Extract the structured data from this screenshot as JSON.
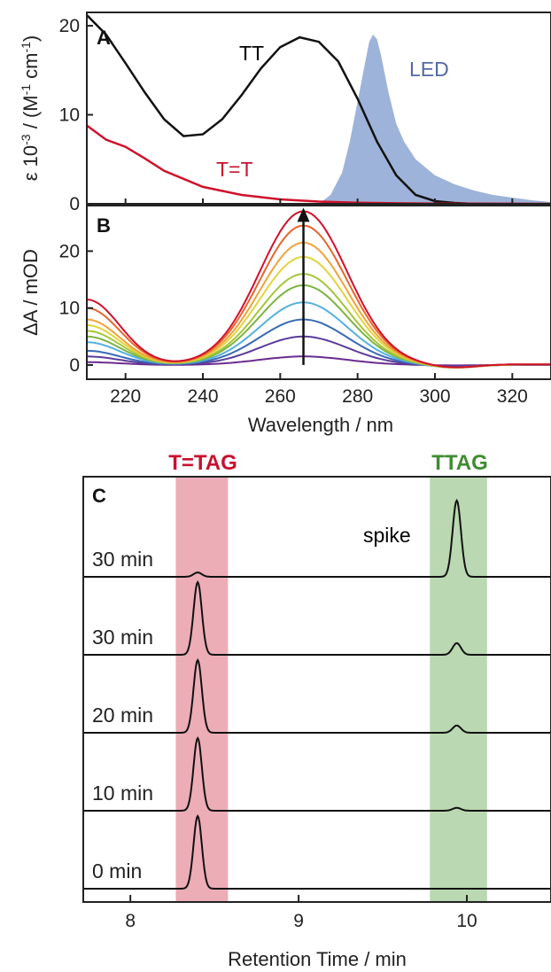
{
  "colors": {
    "tt": "#111111",
    "tt_dimer": "#d0112b",
    "led_fill": "#9db3d9",
    "led_label": "#5468a8",
    "t_tag_band": "#e48a97",
    "ttag_band": "#9cc890",
    "t_tag_label": "#c8102e",
    "ttag_label": "#3e8d2f",
    "spectra_series": [
      "#6a2c8e",
      "#5a3c9a",
      "#3a6ab5",
      "#54b0e0",
      "#7cb342",
      "#a4c639",
      "#e2d43a",
      "#f2a23a",
      "#e8652a",
      "#d0112b"
    ]
  },
  "chart_data": [
    {
      "panel": "A",
      "type": "line",
      "ylabel": "ε 10-3 / (M-1 cm-1)",
      "ylabel_parts": {
        "main": "ε 10",
        "exp1": "-3",
        "mid": " / (M",
        "exp2": "-1",
        "mid2": " cm",
        "exp3": "-1",
        "end": ")"
      },
      "xlim": [
        210,
        330
      ],
      "ylim": [
        0,
        21.5
      ],
      "y_ticks": [
        "0",
        "10",
        "20"
      ],
      "y_tick_values": [
        0,
        10,
        20
      ],
      "series": [
        {
          "name": "TT",
          "x": [
            210,
            215,
            220,
            225,
            230,
            235,
            240,
            245,
            250,
            255,
            260,
            265,
            270,
            275,
            280,
            285,
            290,
            295,
            300,
            305,
            310
          ],
          "y": [
            21.2,
            19.0,
            15.8,
            12.5,
            9.5,
            7.6,
            7.8,
            9.5,
            12.2,
            15.2,
            17.6,
            18.7,
            18.2,
            16.0,
            11.8,
            7.0,
            3.2,
            1.0,
            0.3,
            0.1,
            0.0
          ]
        },
        {
          "name": "T=T",
          "x": [
            210,
            215,
            220,
            225,
            230,
            240,
            250,
            260,
            270,
            280,
            290,
            300,
            310,
            320,
            330
          ],
          "y": [
            8.8,
            7.2,
            6.4,
            5.1,
            3.7,
            1.9,
            1.0,
            0.5,
            0.25,
            0.12,
            0.06,
            0.03,
            0.02,
            0.01,
            0.0
          ]
        },
        {
          "name": "LED",
          "x": [
            270,
            273,
            276,
            278,
            280,
            282,
            283,
            284,
            285,
            286,
            288,
            290,
            292,
            295,
            300,
            305,
            310,
            315,
            320,
            325,
            330
          ],
          "y": [
            0,
            1.0,
            3.5,
            7.0,
            11.5,
            16.0,
            18.2,
            19.0,
            18.5,
            16.8,
            12.5,
            9.0,
            7.0,
            5.0,
            3.2,
            2.2,
            1.5,
            1.0,
            0.7,
            0.4,
            0.2
          ]
        }
      ],
      "labels": {
        "tt": "TT",
        "tt_dimer": "T=T",
        "led": "LED"
      }
    },
    {
      "panel": "B",
      "type": "line",
      "xlabel": "Wavelength / nm",
      "ylabel": "ΔA / mOD",
      "xlim": [
        210,
        330
      ],
      "ylim": [
        -2.5,
        28
      ],
      "x_ticks": [
        "220",
        "240",
        "260",
        "280",
        "300",
        "320"
      ],
      "x_tick_values": [
        220,
        240,
        260,
        280,
        300,
        320
      ],
      "y_ticks": [
        "0",
        "10",
        "20"
      ],
      "y_tick_values": [
        0,
        10,
        20
      ],
      "series_peaks": [
        1.5,
        5.0,
        8.0,
        11.0,
        14.0,
        16.0,
        19.0,
        21.5,
        24.5,
        27.0
      ],
      "series_uv210": [
        0.5,
        1.5,
        2.5,
        4.0,
        5.0,
        6.0,
        7.0,
        8.0,
        10.0,
        11.5
      ],
      "arrow": {
        "x": 266,
        "from": 0,
        "to": 27
      }
    },
    {
      "panel": "C",
      "type": "line",
      "xlabel": "Retention Time / min",
      "xlim": [
        7.72,
        10.5
      ],
      "x_ticks": [
        "8",
        "9",
        "10"
      ],
      "x_tick_values": [
        8,
        9,
        10
      ],
      "bands": [
        {
          "label": "T=TAG",
          "from": 8.27,
          "to": 8.58
        },
        {
          "label": "TTAG",
          "from": 9.78,
          "to": 10.12
        }
      ],
      "traces": [
        {
          "label": "0 min",
          "peak1": 1.0,
          "peak2": 0.0
        },
        {
          "label": "10 min",
          "peak1": 1.0,
          "peak2": 0.04
        },
        {
          "label": "20 min",
          "peak1": 1.0,
          "peak2": 0.1
        },
        {
          "label": "30 min",
          "peak1": 1.0,
          "peak2": 0.16
        },
        {
          "label": "30 min",
          "peak1": 0.06,
          "peak2": 1.05,
          "note": "spike"
        }
      ]
    }
  ]
}
